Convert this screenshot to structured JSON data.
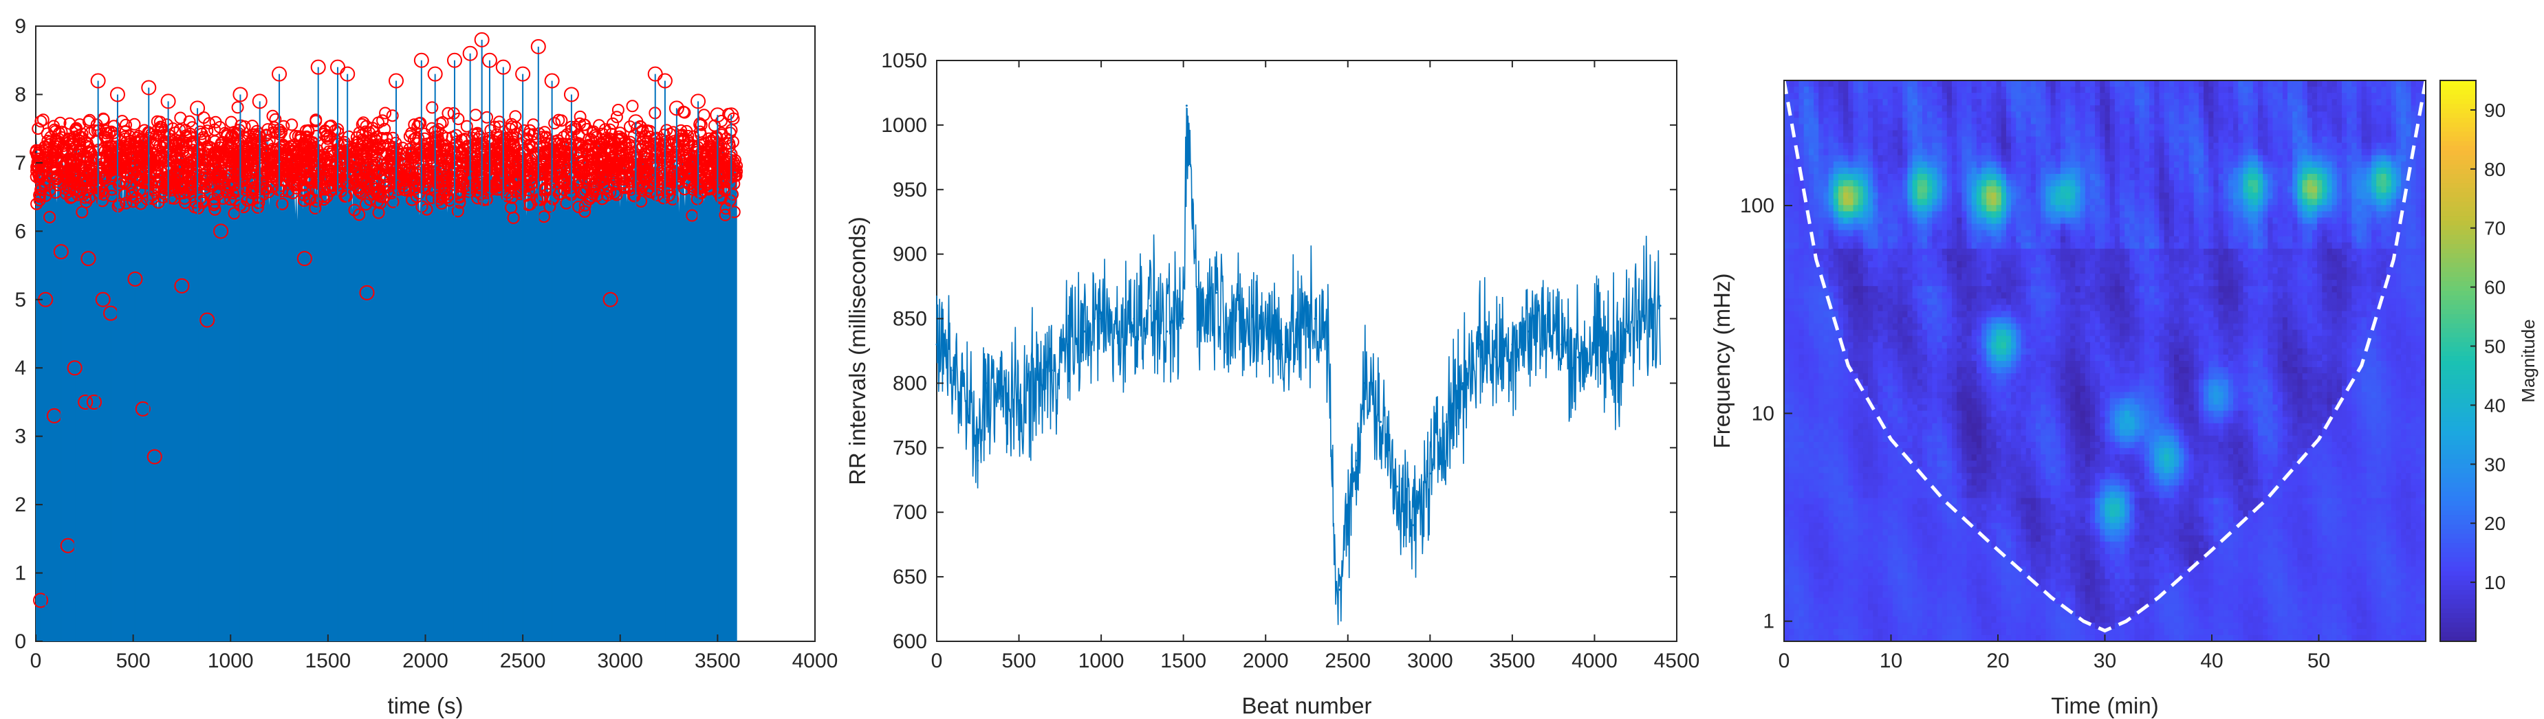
{
  "chart_data": [
    {
      "type": "scatter",
      "title": "",
      "xlabel": "time (s)",
      "ylabel": "",
      "xlim": [
        0,
        4000
      ],
      "ylim": [
        0,
        9
      ],
      "xticks": [
        0,
        500,
        1000,
        1500,
        2000,
        2500,
        3000,
        3500,
        4000
      ],
      "yticks": [
        0,
        1,
        2,
        3,
        4,
        5,
        6,
        7,
        8,
        9
      ],
      "grid": false,
      "stem_color": "#0072bd",
      "marker_color": "#ff0000",
      "series": [
        {
          "style": "stem-with-circle-markers",
          "x_range": [
            0,
            3600
          ],
          "typical_band": [
            6.2,
            7.8
          ],
          "x": [
            25,
            50,
            95,
            130,
            165,
            200,
            255,
            270,
            300,
            320,
            345,
            385,
            420,
            510,
            550,
            580,
            610,
            680,
            750,
            830,
            880,
            950,
            1050,
            1150,
            1250,
            1380,
            1450,
            1550,
            1600,
            1700,
            1850,
            1980,
            2050,
            2150,
            2230,
            2290,
            2330,
            2400,
            2500,
            2580,
            2650,
            2750,
            2950,
            3080,
            3180,
            3230,
            3290,
            3400,
            3500,
            3570
          ],
          "y": [
            0.6,
            5.0,
            3.3,
            5.7,
            1.4,
            4.0,
            3.5,
            5.6,
            3.5,
            8.2,
            5.0,
            4.8,
            8.0,
            5.3,
            3.4,
            8.1,
            2.7,
            7.9,
            5.2,
            7.8,
            4.7,
            6.0,
            8.0,
            7.9,
            8.3,
            5.6,
            8.4,
            8.4,
            8.3,
            5.1,
            8.2,
            8.5,
            8.3,
            8.5,
            8.6,
            8.8,
            8.5,
            8.4,
            8.3,
            8.7,
            8.2,
            8.0,
            5.0,
            7.6,
            8.3,
            8.2,
            7.8,
            7.9,
            7.7,
            7.7
          ]
        }
      ]
    },
    {
      "type": "line",
      "title": "",
      "xlabel": "Beat number",
      "ylabel": "RR intervals (milliseconds)",
      "xlim": [
        0,
        4500
      ],
      "ylim": [
        600,
        1050
      ],
      "xticks": [
        0,
        500,
        1000,
        1500,
        2000,
        2500,
        3000,
        3500,
        4000,
        4500
      ],
      "yticks": [
        600,
        650,
        700,
        750,
        800,
        850,
        900,
        950,
        1000,
        1050
      ],
      "grid": false,
      "line_color": "#0072bd",
      "series": [
        {
          "x": [
            0,
            100,
            200,
            250,
            300,
            400,
            500,
            600,
            700,
            800,
            900,
            1000,
            1100,
            1200,
            1300,
            1400,
            1500,
            1520,
            1600,
            1700,
            1800,
            1900,
            2000,
            2100,
            2200,
            2300,
            2380,
            2420,
            2450,
            2500,
            2550,
            2600,
            2700,
            2800,
            2900,
            3000,
            3100,
            3200,
            3300,
            3400,
            3500,
            3600,
            3700,
            3800,
            3900,
            4000,
            4100,
            4200,
            4300,
            4400
          ],
          "y": [
            830,
            810,
            780,
            740,
            800,
            790,
            780,
            800,
            810,
            830,
            840,
            850,
            840,
            850,
            860,
            840,
            850,
            1015,
            850,
            870,
            850,
            840,
            850,
            830,
            840,
            850,
            830,
            660,
            640,
            700,
            740,
            800,
            770,
            720,
            690,
            730,
            770,
            800,
            830,
            820,
            830,
            840,
            850,
            830,
            820,
            830,
            820,
            840,
            850,
            860
          ],
          "envelope_low": [
            760,
            730,
            690,
            660,
            720,
            700,
            700,
            720,
            730,
            750,
            760,
            770,
            760,
            770,
            780,
            760,
            770,
            770,
            770,
            790,
            770,
            760,
            770,
            750,
            760,
            770,
            750,
            610,
            610,
            640,
            670,
            720,
            690,
            650,
            620,
            660,
            690,
            720,
            750,
            740,
            750,
            760,
            770,
            750,
            740,
            750,
            700,
            740,
            750,
            760
          ],
          "envelope_high": [
            920,
            900,
            880,
            840,
            890,
            880,
            870,
            890,
            900,
            920,
            930,
            940,
            930,
            940,
            950,
            930,
            940,
            1015,
            940,
            960,
            940,
            930,
            940,
            920,
            930,
            940,
            920,
            760,
            730,
            790,
            830,
            890,
            860,
            810,
            780,
            820,
            860,
            890,
            920,
            910,
            920,
            930,
            940,
            920,
            910,
            920,
            910,
            930,
            940,
            950
          ]
        }
      ]
    },
    {
      "type": "heatmap",
      "title": "",
      "xlabel": "Time (min)",
      "ylabel": "Frequency (mHz)",
      "xlim": [
        0,
        60
      ],
      "ylim": [
        0.8,
        400
      ],
      "yscale": "log",
      "xticks": [
        0,
        10,
        20,
        30,
        40,
        50
      ],
      "yticks": [
        1,
        10,
        100
      ],
      "colorbar": {
        "label": "Magnitude",
        "range": [
          0,
          95
        ],
        "ticks": [
          10,
          20,
          30,
          40,
          50,
          60,
          70,
          80,
          90
        ],
        "colormap": [
          "#3e26a8",
          "#4743f7",
          "#2e7df6",
          "#1ba8df",
          "#1bc2b1",
          "#69cc74",
          "#c1c13a",
          "#f9ba38",
          "#f9fb15"
        ]
      },
      "cone_of_influence": {
        "style": "dashed",
        "color": "#ffffff",
        "x": [
          0,
          3,
          6,
          10,
          15,
          20,
          25,
          28,
          30,
          32,
          35,
          40,
          45,
          50,
          54,
          57,
          60
        ],
        "y": [
          400,
          55,
          17,
          7.5,
          3.8,
          2.2,
          1.3,
          1.0,
          0.9,
          1.0,
          1.3,
          2.2,
          3.8,
          7.5,
          17,
          55,
          400
        ]
      },
      "hotspots": [
        {
          "x": 6,
          "y": 110,
          "magnitude": 68
        },
        {
          "x": 13,
          "y": 120,
          "magnitude": 55
        },
        {
          "x": 19.5,
          "y": 110,
          "magnitude": 62
        },
        {
          "x": 20.5,
          "y": 22,
          "magnitude": 50
        },
        {
          "x": 32,
          "y": 9,
          "magnitude": 38
        },
        {
          "x": 31,
          "y": 3.5,
          "magnitude": 40
        },
        {
          "x": 36,
          "y": 6,
          "magnitude": 36
        },
        {
          "x": 40.5,
          "y": 12,
          "magnitude": 34
        },
        {
          "x": 49.5,
          "y": 120,
          "magnitude": 62
        },
        {
          "x": 56,
          "y": 130,
          "magnitude": 55
        },
        {
          "x": 26,
          "y": 110,
          "magnitude": 48
        },
        {
          "x": 44,
          "y": 125,
          "magnitude": 46
        }
      ]
    }
  ]
}
